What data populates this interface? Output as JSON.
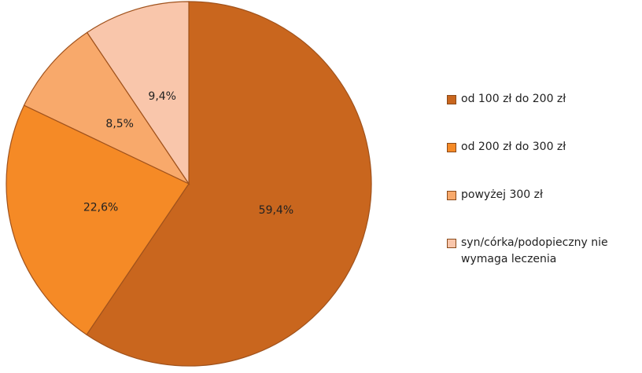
{
  "chart_data": {
    "type": "pie",
    "categories": [
      "od 100 zł do 200 zł",
      "od 200 zł do 300 zł",
      "powyżej 300 zł",
      "syn/córka/podopieczny nie wymaga leczenia"
    ],
    "values": [
      59.4,
      22.6,
      8.5,
      9.4
    ],
    "value_labels": [
      "59,4%",
      "22,6%",
      "8,5%",
      "9,4%"
    ],
    "colors": [
      "#c9661e",
      "#f58a26",
      "#f8a96b",
      "#f9c6ab"
    ],
    "legend": "right"
  }
}
